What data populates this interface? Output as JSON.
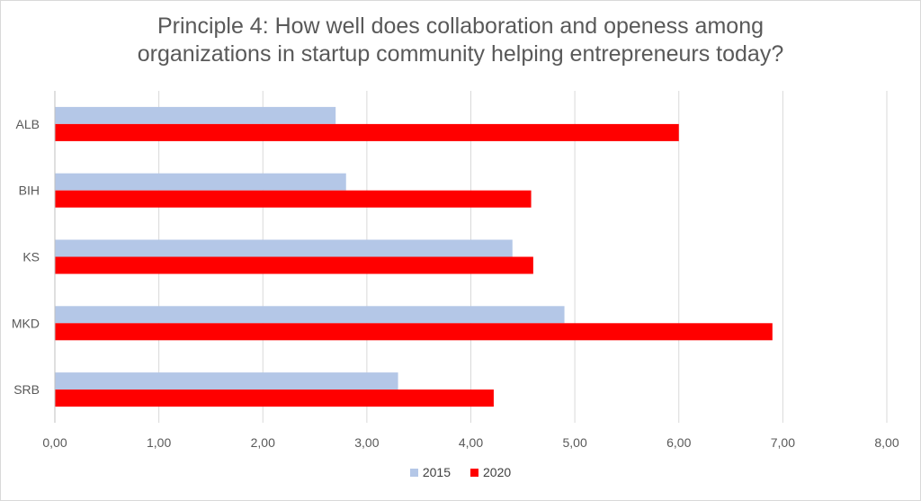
{
  "chart_data": {
    "type": "bar",
    "orientation": "horizontal",
    "title_line1": "Principle 4: How well does collaboration and openess among",
    "title_line2": "organizations in startup community helping entrepreneurs today?",
    "categories": [
      "ALB",
      "BIH",
      "KS",
      "MKD",
      "SRB"
    ],
    "series": [
      {
        "name": "2015",
        "color": "#b4c7e7",
        "values": [
          2.7,
          2.8,
          4.4,
          4.9,
          3.3
        ]
      },
      {
        "name": "2020",
        "color": "#ff0000",
        "values": [
          6.0,
          4.58,
          4.6,
          6.9,
          4.22
        ]
      }
    ],
    "xlim": [
      0,
      8
    ],
    "xticks": [
      0,
      1,
      2,
      3,
      4,
      5,
      6,
      7,
      8
    ],
    "xtick_labels": [
      "0,00",
      "1,00",
      "2,00",
      "3,00",
      "4,00",
      "5,00",
      "6,00",
      "7,00",
      "8,00"
    ],
    "grid": true,
    "legend_position": "bottom"
  }
}
